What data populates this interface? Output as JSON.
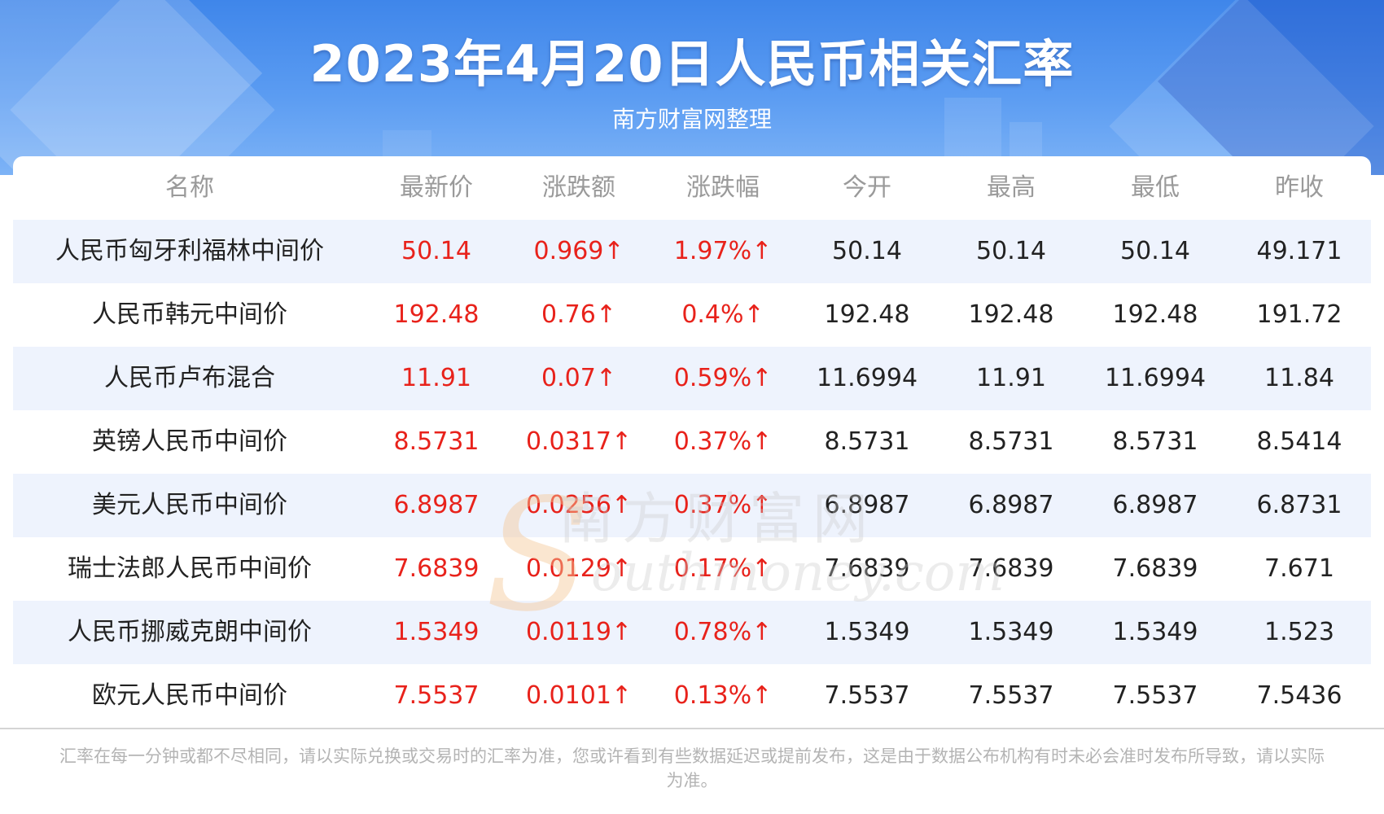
{
  "header": {
    "title": "2023年4月20日人民币相关汇率",
    "subtitle": "南方财富网整理"
  },
  "watermark": {
    "letter": "S",
    "cn": "南方财富网",
    "en": "outhmoney.com"
  },
  "table": {
    "columns": [
      "名称",
      "最新价",
      "涨跌额",
      "涨跌幅",
      "今开",
      "最高",
      "最低",
      "昨收"
    ],
    "rows": [
      [
        "人民币匈牙利福林中间价",
        "50.14",
        "0.969↑",
        "1.97%↑",
        "50.14",
        "50.14",
        "50.14",
        "49.171"
      ],
      [
        "人民币韩元中间价",
        "192.48",
        "0.76↑",
        "0.4%↑",
        "192.48",
        "192.48",
        "192.48",
        "191.72"
      ],
      [
        "人民币卢布混合",
        "11.91",
        "0.07↑",
        "0.59%↑",
        "11.6994",
        "11.91",
        "11.6994",
        "11.84"
      ],
      [
        "英镑人民币中间价",
        "8.5731",
        "0.0317↑",
        "0.37%↑",
        "8.5731",
        "8.5731",
        "8.5731",
        "8.5414"
      ],
      [
        "美元人民币中间价",
        "6.8987",
        "0.0256↑",
        "0.37%↑",
        "6.8987",
        "6.8987",
        "6.8987",
        "6.8731"
      ],
      [
        "瑞士法郎人民币中间价",
        "7.6839",
        "0.0129↑",
        "0.17%↑",
        "7.6839",
        "7.6839",
        "7.6839",
        "7.671"
      ],
      [
        "人民币挪威克朗中间价",
        "1.5349",
        "0.0119↑",
        "0.78%↑",
        "1.5349",
        "1.5349",
        "1.5349",
        "1.523"
      ],
      [
        "欧元人民币中间价",
        "7.5537",
        "0.0101↑",
        "0.13%↑",
        "7.5537",
        "7.5537",
        "7.5537",
        "7.5436"
      ]
    ]
  },
  "footnote": "汇率在每一分钟或都不尽相同，请以实际兑换或交易时的汇率为准，您或许看到有些数据延迟或提前发布，这是由于数据公布机构有时未必会准时发布所导致，请以实际为准。",
  "colors": {
    "up": "#e8221b",
    "header_blue": "#3f86ea",
    "row_alt": "#eef3fd"
  }
}
